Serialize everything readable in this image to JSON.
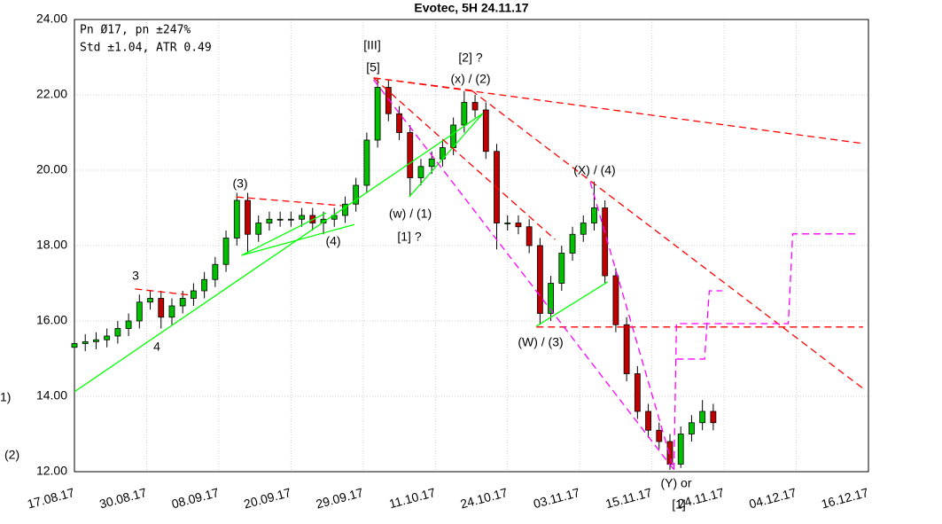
{
  "chart_data": {
    "type": "candlestick",
    "title": "Evotec, 5H 24.11.17",
    "info": [
      "Pn  Ø17, pn ±247%",
      "Std ±1.04, ATR 0.49"
    ],
    "xlim": [
      0,
      220
    ],
    "xticks": [
      {
        "value": 0,
        "label": "17.08.17"
      },
      {
        "value": 20,
        "label": "30.08.17"
      },
      {
        "value": 40,
        "label": "08.09.17"
      },
      {
        "value": 60,
        "label": "20.09.17"
      },
      {
        "value": 80,
        "label": "29.09.17"
      },
      {
        "value": 100,
        "label": "11.10.17"
      },
      {
        "value": 120,
        "label": "24.10.17"
      },
      {
        "value": 140,
        "label": "03.11.17"
      },
      {
        "value": 160,
        "label": "15.11.17"
      },
      {
        "value": 180,
        "label": "24.11.17"
      },
      {
        "value": 200,
        "label": "04.12.17"
      },
      {
        "value": 220,
        "label": "16.12.17"
      }
    ],
    "ylim": [
      12,
      24
    ],
    "yticks": [
      {
        "value": 12,
        "label": "12.00"
      },
      {
        "value": 14,
        "label": "14.00"
      },
      {
        "value": 16,
        "label": "16.00"
      },
      {
        "value": 18,
        "label": "18.00"
      },
      {
        "value": 20,
        "label": "20.00"
      },
      {
        "value": 22,
        "label": "22.00"
      },
      {
        "value": 24,
        "label": "24.00"
      }
    ],
    "grid": true,
    "up_color": "#00c000",
    "down_color": "#c00000",
    "candles": {
      "x": [
        0,
        3,
        6,
        9,
        12,
        15,
        18,
        21,
        24,
        27,
        30,
        33,
        36,
        39,
        42,
        45,
        48,
        51,
        54,
        57,
        60,
        63,
        66,
        69,
        72,
        75,
        78,
        81,
        84,
        87,
        90,
        93,
        96,
        99,
        102,
        105,
        108,
        111,
        114,
        117,
        120,
        123,
        126,
        129,
        132,
        135,
        138,
        141,
        144,
        147,
        150,
        153,
        156,
        159,
        162,
        165,
        168,
        171,
        174,
        177
      ],
      "open": [
        15.3,
        15.4,
        15.45,
        15.5,
        15.6,
        15.8,
        16.0,
        16.5,
        16.6,
        16.1,
        16.4,
        16.6,
        16.8,
        17.1,
        17.5,
        18.2,
        19.2,
        18.3,
        18.6,
        18.7,
        18.7,
        18.7,
        18.8,
        18.6,
        18.7,
        18.8,
        19.1,
        19.6,
        20.8,
        22.2,
        21.5,
        21.0,
        19.8,
        20.1,
        20.3,
        20.6,
        21.2,
        21.8,
        21.6,
        20.5,
        18.6,
        18.6,
        18.5,
        18.0,
        16.2,
        17.0,
        17.8,
        18.3,
        18.6,
        19.0,
        17.2,
        15.9,
        14.6,
        13.6,
        13.1,
        12.8,
        12.2,
        13.0,
        13.3,
        13.6
      ],
      "high": [
        15.6,
        15.65,
        15.7,
        15.8,
        16.0,
        16.2,
        16.7,
        16.8,
        16.8,
        16.6,
        16.8,
        17.0,
        17.3,
        17.7,
        18.4,
        19.4,
        19.4,
        18.8,
        18.9,
        18.9,
        18.9,
        19.0,
        19.0,
        18.9,
        19.0,
        19.3,
        19.8,
        21.0,
        22.45,
        22.4,
        21.7,
        21.2,
        20.3,
        20.5,
        20.8,
        21.4,
        22.1,
        22.0,
        21.8,
        20.7,
        18.8,
        18.8,
        18.7,
        18.2,
        17.2,
        18.0,
        18.5,
        18.8,
        19.7,
        19.2,
        17.4,
        16.1,
        14.8,
        13.8,
        13.3,
        13.0,
        13.2,
        13.5,
        13.9,
        13.8
      ],
      "low": [
        14.8,
        15.2,
        15.25,
        15.3,
        15.4,
        15.6,
        15.8,
        16.3,
        15.8,
        15.9,
        16.2,
        16.4,
        16.6,
        16.9,
        17.3,
        18.0,
        17.8,
        18.1,
        18.4,
        18.5,
        18.5,
        18.5,
        18.4,
        18.3,
        18.5,
        18.6,
        18.9,
        19.4,
        20.6,
        21.3,
        20.8,
        19.3,
        19.6,
        19.9,
        20.1,
        20.4,
        21.0,
        21.4,
        20.3,
        17.9,
        18.4,
        18.3,
        17.8,
        15.9,
        16.0,
        16.8,
        17.6,
        18.1,
        18.4,
        17.0,
        15.7,
        14.4,
        13.4,
        12.9,
        12.6,
        12.05,
        12.1,
        12.8,
        13.1,
        13.1
      ],
      "close": [
        15.4,
        15.45,
        15.5,
        15.6,
        15.8,
        16.0,
        16.5,
        16.6,
        16.1,
        16.4,
        16.6,
        16.8,
        17.1,
        17.5,
        18.2,
        19.2,
        18.3,
        18.6,
        18.7,
        18.7,
        18.7,
        18.8,
        18.6,
        18.7,
        18.8,
        19.1,
        19.6,
        20.8,
        22.2,
        21.5,
        21.0,
        19.8,
        20.1,
        20.3,
        20.6,
        21.2,
        21.8,
        21.6,
        20.5,
        18.6,
        18.6,
        18.5,
        18.0,
        16.2,
        17.0,
        17.8,
        18.3,
        18.6,
        19.0,
        17.2,
        15.9,
        14.6,
        13.6,
        13.1,
        12.8,
        12.2,
        13.0,
        13.3,
        13.6,
        13.3
      ]
    },
    "lines": [
      {
        "color": "#00ff00",
        "dash": false,
        "x": [
          0,
          113.2
        ],
        "y": [
          14.12,
          21.51
        ]
      },
      {
        "color": "#00ff00",
        "dash": false,
        "x": [
          46.3,
          77.6
        ],
        "y": [
          17.74,
          18.56
        ]
      },
      {
        "color": "#00ff00",
        "dash": false,
        "x": [
          46.3,
          69.8
        ],
        "y": [
          17.74,
          18.87
        ]
      },
      {
        "color": "#00ff00",
        "dash": false,
        "x": [
          92.7,
          113.2
        ],
        "y": [
          19.29,
          21.51
        ]
      },
      {
        "color": "#00ff00",
        "dash": false,
        "x": [
          128,
          147.8
        ],
        "y": [
          15.86,
          17.04
        ]
      },
      {
        "color": "#ff0000",
        "dash": true,
        "x": [
          16.8,
          32.7
        ],
        "y": [
          16.85,
          16.68
        ]
      },
      {
        "color": "#ff0000",
        "dash": true,
        "x": [
          44.9,
          74.1
        ],
        "y": [
          19.29,
          19.06
        ]
      },
      {
        "color": "#ff0000",
        "dash": true,
        "x": [
          82.9,
          218.5
        ],
        "y": [
          22.45,
          20.71
        ]
      },
      {
        "color": "#ff0000",
        "dash": true,
        "x": [
          82.9,
          110
        ],
        "y": [
          22.45,
          22.12
        ]
      },
      {
        "color": "#ff0000",
        "dash": true,
        "x": [
          82.9,
          133.2
        ],
        "y": [
          22.45,
          18.16
        ]
      },
      {
        "color": "#ff0000",
        "dash": true,
        "x": [
          110,
          218.5
        ],
        "y": [
          22.12,
          14.21
        ]
      },
      {
        "color": "#ff0000",
        "dash": true,
        "x": [
          128,
          218.5
        ],
        "y": [
          15.84,
          15.84
        ]
      },
      {
        "color": "#ff00ff",
        "dash": true,
        "x": [
          82.9,
          166.1
        ],
        "y": [
          22.4,
          12.05
        ]
      },
      {
        "color": "#ff00ff",
        "dash": true,
        "x": [
          142.9,
          166.1
        ],
        "y": [
          19.69,
          12.05
        ]
      },
      {
        "color": "#ff00ff",
        "dash": true,
        "x": [
          166.1,
          166.8,
          197.8,
          199,
          216.6
        ],
        "y": [
          12.05,
          15.93,
          15.93,
          18.31,
          18.31
        ]
      },
      {
        "color": "#ff00ff",
        "dash": true,
        "x": [
          166.8,
          174.6,
          175.9,
          179.5
        ],
        "y": [
          14.99,
          14.99,
          16.8,
          16.8
        ]
      }
    ],
    "annotations": [
      "3",
      "4",
      "(3)",
      "(4)",
      "[III]",
      "[5]",
      "(w) / (1)",
      "[1] ?",
      "[2] ?",
      "(x) / (2)",
      "(X) / (4)",
      "(W) / (3)",
      "(Y) or",
      "[1]",
      "1)",
      "(2)"
    ]
  }
}
